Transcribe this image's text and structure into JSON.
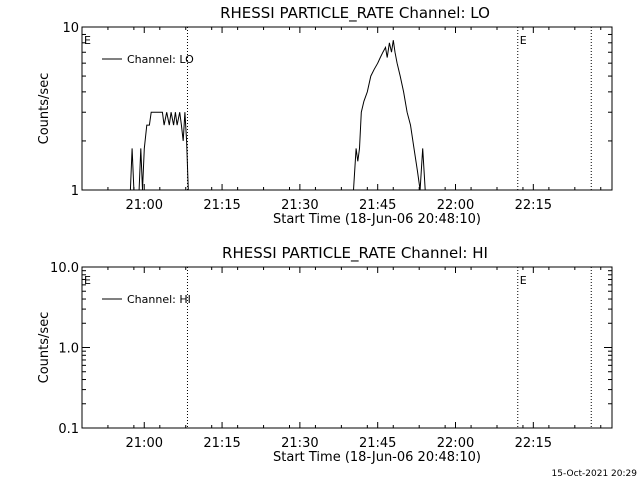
{
  "footer_timestamp": "15-Oct-2021 20:29",
  "chart_data": [
    {
      "type": "line",
      "title": "RHESSI PARTICLE_RATE Channel: LO",
      "xlabel": "Start Time (18-Jun-06 20:48:10)",
      "ylabel": "Counts/sec",
      "legend": {
        "label": "Channel: LO",
        "placement": "top-left"
      },
      "x_ticks": [
        "21:00",
        "21:15",
        "21:30",
        "21:45",
        "22:00",
        "22:15"
      ],
      "x_tick_minutes": [
        720,
        1620,
        2520,
        3420,
        4320,
        5220
      ],
      "xlim_seconds_after_start": [
        0,
        6130
      ],
      "y_scale": "log",
      "ylim": [
        1,
        10
      ],
      "y_ticks": [
        "1",
        "10"
      ],
      "y_tick_values": [
        1,
        10
      ],
      "vlines_seconds_after_start": [
        1220,
        5040,
        5890
      ],
      "vline_markers": [
        {
          "text": "E",
          "at_seconds": 0
        },
        {
          "text": "E",
          "at_seconds": 5040
        }
      ],
      "series": [
        {
          "name": "Channel: LO",
          "x_seconds_after_start": [
            540,
            560,
            580,
            600,
            640,
            660,
            680,
            700,
            720,
            750,
            780,
            800,
            830,
            870,
            890,
            910,
            930,
            950,
            980,
            1010,
            1030,
            1060,
            1080,
            1100,
            1130,
            1150,
            1170,
            1190,
            1210,
            1230,
            1250,
            3140,
            3170,
            3190,
            3210,
            3230,
            3260,
            3300,
            3340,
            3380,
            3420,
            3450,
            3480,
            3510,
            3530,
            3555,
            3580,
            3600,
            3620,
            3645,
            3680,
            3720,
            3760,
            3800,
            3840,
            3880,
            3910,
            3940,
            3970,
            4000
          ],
          "values": [
            1,
            1,
            1.8,
            1,
            1,
            1,
            1.8,
            1,
            1.8,
            2.5,
            2.5,
            3,
            3,
            3,
            3,
            3,
            3,
            2.5,
            3,
            2.5,
            3,
            2.5,
            3,
            2.5,
            3,
            2.5,
            2,
            3,
            2,
            1,
            1,
            1,
            1.8,
            1.5,
            1.8,
            3,
            3.5,
            4,
            5,
            5.5,
            6,
            6.5,
            7,
            7.5,
            6.5,
            8,
            7,
            8.3,
            7,
            6,
            5,
            4,
            3,
            2.5,
            1.8,
            1.3,
            1,
            1.8,
            1,
            1
          ]
        }
      ]
    },
    {
      "type": "line",
      "title": "RHESSI PARTICLE_RATE Channel: HI",
      "xlabel": "Start Time (18-Jun-06 20:48:10)",
      "ylabel": "Counts/sec",
      "legend": {
        "label": "Channel: HI",
        "placement": "top-left"
      },
      "x_ticks": [
        "21:00",
        "21:15",
        "21:30",
        "21:45",
        "22:00",
        "22:15"
      ],
      "x_tick_minutes": [
        720,
        1620,
        2520,
        3420,
        4320,
        5220
      ],
      "xlim_seconds_after_start": [
        0,
        6130
      ],
      "y_scale": "log",
      "ylim": [
        0.1,
        10
      ],
      "y_ticks": [
        "0.1",
        "1.0",
        "10.0"
      ],
      "y_tick_values": [
        0.1,
        1,
        10
      ],
      "vlines_seconds_after_start": [
        1220,
        5040,
        5890
      ],
      "vline_markers": [
        {
          "text": "E",
          "at_seconds": 0
        },
        {
          "text": "E",
          "at_seconds": 5040
        }
      ],
      "series": [
        {
          "name": "Channel: HI",
          "x_seconds_after_start": [],
          "values": []
        }
      ]
    }
  ]
}
